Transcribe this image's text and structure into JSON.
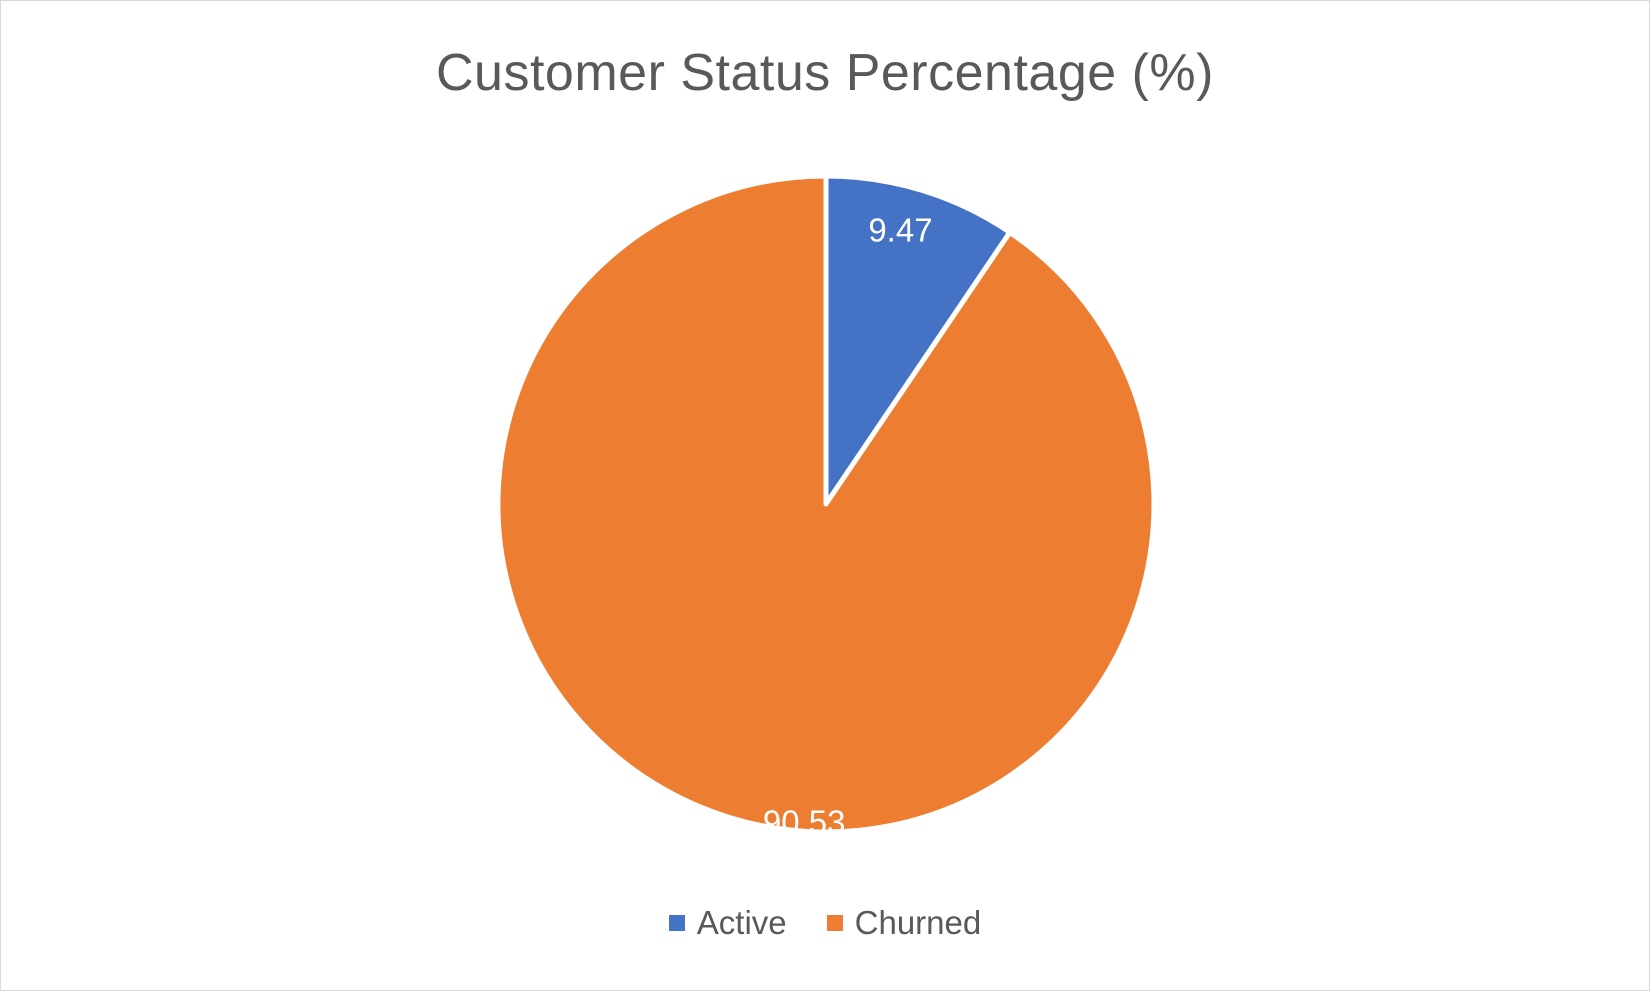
{
  "chart_data": {
    "type": "pie",
    "title": "Customer Status Percentage (%)",
    "categories": [
      "Active",
      "Churned"
    ],
    "values": [
      9.47,
      90.53
    ],
    "value_labels": [
      "9.47",
      "90.53"
    ],
    "colors": [
      "#4472C4",
      "#ED7D31"
    ],
    "start_angle_deg": 0,
    "direction": "clockwise",
    "legend_position": "bottom"
  }
}
